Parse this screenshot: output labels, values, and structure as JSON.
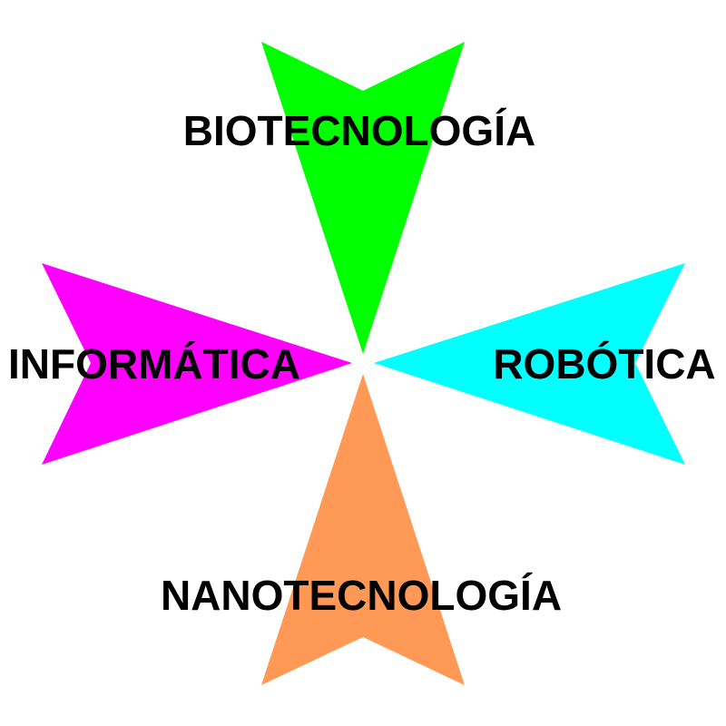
{
  "diagram": {
    "arms": [
      {
        "id": "top",
        "label": "BIOTECNOLOGÍA",
        "color": "#00ff00"
      },
      {
        "id": "left",
        "label": "INFORMÁTICA",
        "color": "#ff00ff"
      },
      {
        "id": "right",
        "label": "ROBÓTICA",
        "color": "#00ffff"
      },
      {
        "id": "bottom",
        "label": "NANOTECNOLOGÍA",
        "color": "#ff9955"
      }
    ]
  }
}
